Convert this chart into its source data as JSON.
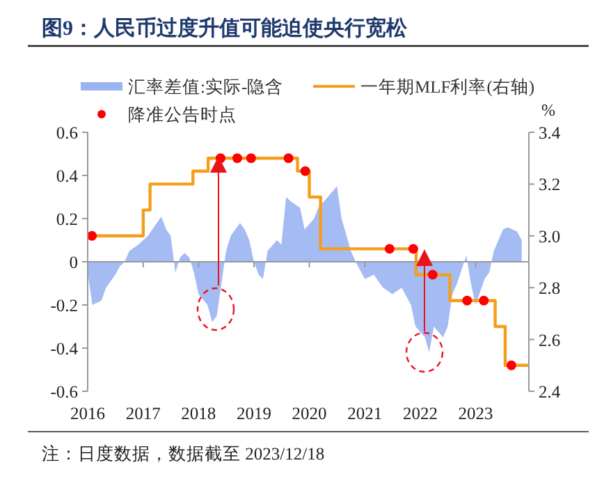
{
  "chart_data": {
    "type": "area",
    "title": "图9：人民币过度升值可能迫使央行宽松",
    "y2label": "%",
    "legend": "top",
    "xlim": [
      "2016-01-01",
      "2023-12-18"
    ],
    "xticks": [
      "2016",
      "2017",
      "2018",
      "2019",
      "2020",
      "2021",
      "2022",
      "2023"
    ],
    "ylim": [
      -0.6,
      0.6
    ],
    "yticks": [
      -0.6,
      -0.4,
      -0.2,
      0,
      0.2,
      0.4,
      0.6
    ],
    "y2lim": [
      2.4,
      3.4
    ],
    "y2ticks": [
      2.4,
      2.6,
      2.8,
      {
        "value": 3,
        "label": "3.0"
      },
      3.2,
      3.4
    ],
    "annotations": [
      "注：日度数据，数据截至 2023/12/18"
    ],
    "series": [
      {
        "name": "汇率差值:实际-隐含",
        "color": "#9ab4f2",
        "x": [
          "2016-01",
          "2016-02",
          "2016-04",
          "2016-05",
          "2016-07",
          "2016-08",
          "2016-09",
          "2016-10",
          "2016-12",
          "2017-01",
          "2017-02",
          "2017-04",
          "2017-05",
          "2017-06",
          "2017-07",
          "2017-08",
          "2017-09",
          "2017-10",
          "2017-11",
          "2017-12",
          "2018-01",
          "2018-03",
          "2018-04",
          "2018-05",
          "2018-06",
          "2018-07",
          "2018-08",
          "2018-10",
          "2018-11",
          "2018-12",
          "2019-01",
          "2019-02",
          "2019-03",
          "2019-04",
          "2019-06",
          "2019-07",
          "2019-08",
          "2019-09",
          "2019-11",
          "2019-12",
          "2020-02",
          "2020-03",
          "2020-05",
          "2020-07",
          "2020-08",
          "2020-10",
          "2020-11",
          "2021-01",
          "2021-03",
          "2021-05",
          "2021-07",
          "2021-09",
          "2021-11",
          "2021-12",
          "2022-02",
          "2022-03",
          "2022-04",
          "2022-06",
          "2022-07",
          "2022-08",
          "2022-09",
          "2022-11",
          "2022-12",
          "2023-01",
          "2023-03",
          "2023-04",
          "2023-05",
          "2023-07",
          "2023-08",
          "2023-10",
          "2023-11"
        ],
        "values": [
          -0.05,
          -0.2,
          -0.18,
          -0.12,
          -0.06,
          -0.02,
          0,
          0.05,
          0.08,
          0.1,
          0.12,
          0.18,
          0.21,
          0.15,
          0.12,
          -0.05,
          0.02,
          0.04,
          0.02,
          -0.05,
          -0.15,
          -0.2,
          -0.28,
          -0.25,
          -0.1,
          0.05,
          0.12,
          0.18,
          0.15,
          0.1,
          0,
          -0.06,
          -0.08,
          0.05,
          0.1,
          0.08,
          0.3,
          0.28,
          0.25,
          0.15,
          0.2,
          0.25,
          0.3,
          0.35,
          0.2,
          0.05,
          0,
          -0.08,
          -0.06,
          -0.12,
          -0.15,
          -0.12,
          -0.2,
          -0.3,
          -0.35,
          -0.42,
          -0.3,
          -0.35,
          -0.3,
          -0.15,
          -0.1,
          0.03,
          -0.1,
          -0.2,
          -0.08,
          -0.05,
          0.05,
          0.15,
          0.16,
          0.14,
          0.1
        ]
      },
      {
        "name": "一年期MLF利率(右轴)",
        "type": "step",
        "axis": "y2",
        "color": "#f59e1c",
        "x": [
          "2016-01-01",
          "2017-01-01",
          "2017-02-15",
          "2017-11-25",
          "2018-03-05",
          "2019-10-15",
          "2020-01-01",
          "2020-03-15",
          "2021-12-05",
          "2022-07-15",
          "2023-05-10",
          "2023-07-15",
          "2023-12-18"
        ],
        "values": [
          3.0,
          3.1,
          3.2,
          3.25,
          3.3,
          3.25,
          3.15,
          2.95,
          2.85,
          2.75,
          2.65,
          2.5,
          2.5
        ]
      },
      {
        "name": "降准公告时点",
        "type": "scatter",
        "axis": "y2",
        "color": "#ff0000",
        "marker": "circle",
        "x": [
          "2016-01-29",
          "2018-05-26",
          "2018-09-13",
          "2018-12-13",
          "2019-08-17",
          "2019-12-05",
          "2021-06-13",
          "2021-11-16",
          "2022-03-24",
          "2022-11-06",
          "2023-02-24",
          "2023-08-25"
        ],
        "values": [
          3.0,
          3.3,
          3.3,
          3.3,
          3.3,
          3.25,
          2.95,
          2.95,
          2.85,
          2.75,
          2.75,
          2.5
        ]
      }
    ]
  }
}
